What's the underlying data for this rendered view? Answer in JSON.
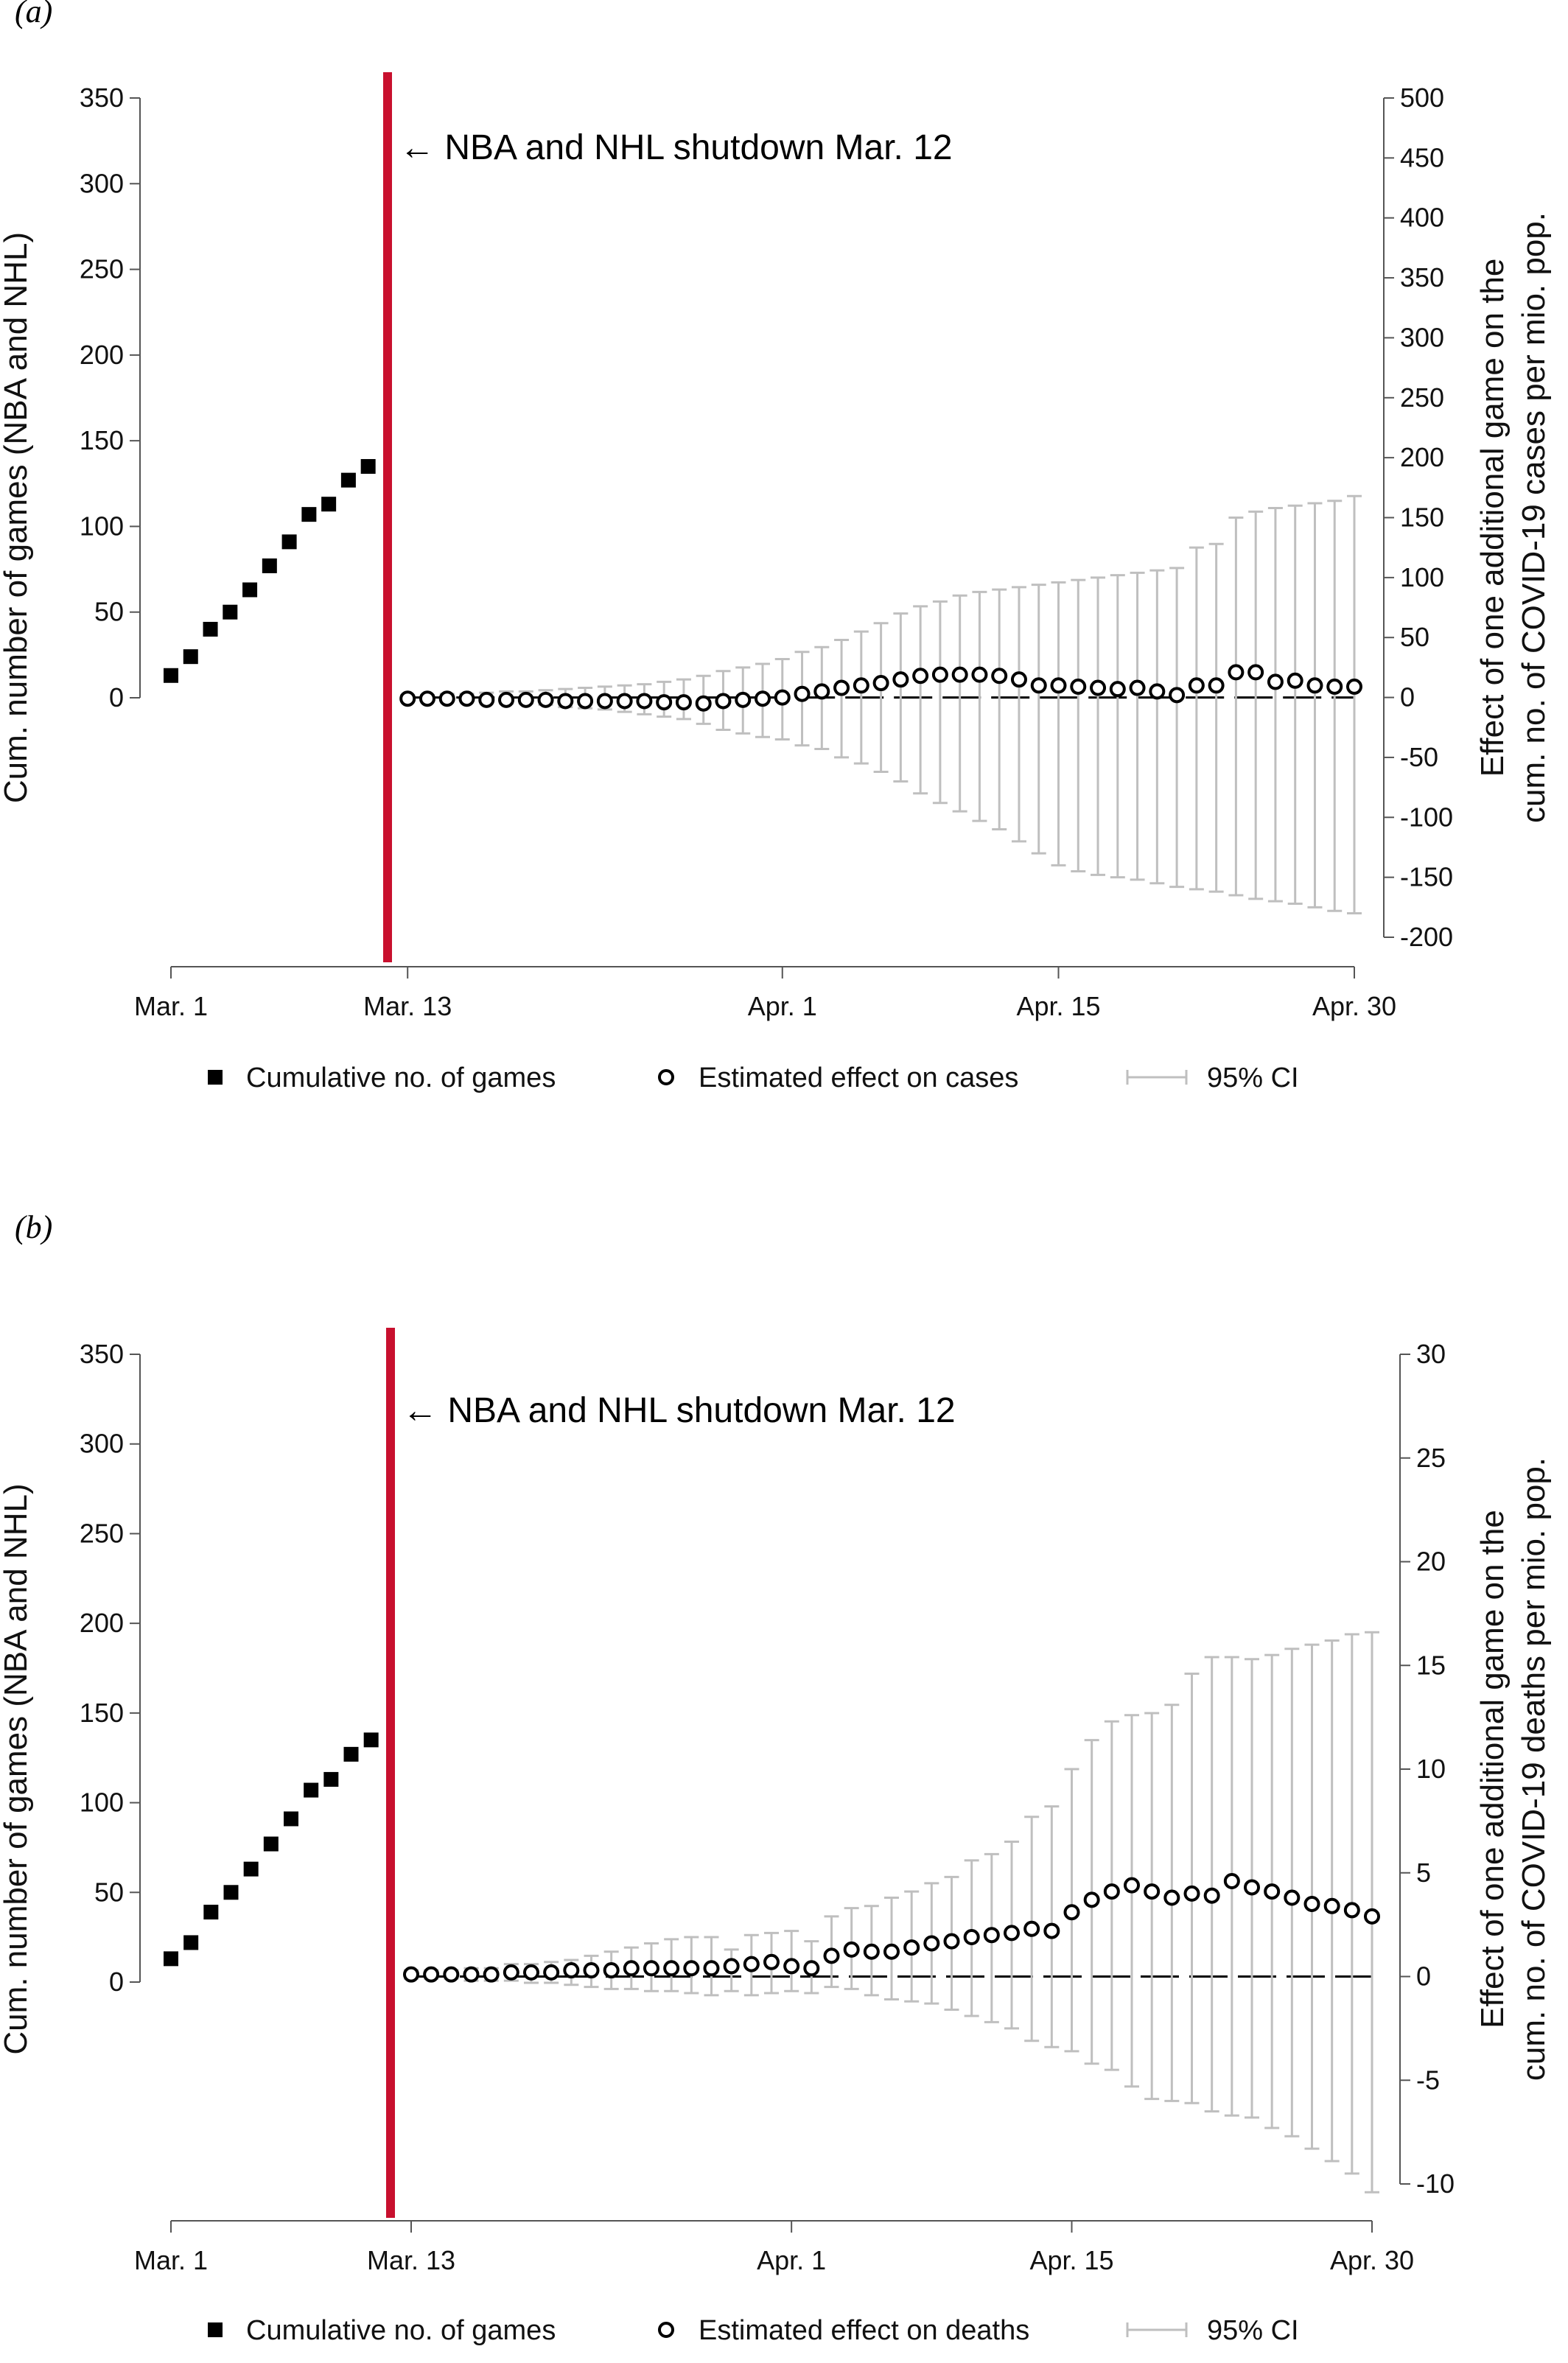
{
  "chart_data": [
    {
      "panel_label": "(a)",
      "type": "scatter",
      "annotation": "← NBA and NHL shutdown Mar. 12",
      "left_axis": {
        "title": "Cum. number of games (NBA and NHL)",
        "ylim": [
          0,
          350
        ],
        "ticks": [
          "0",
          "50",
          "100",
          "150",
          "200",
          "250",
          "300",
          "350"
        ]
      },
      "right_axis": {
        "title_line1": "Effect of one additional game on the",
        "title_line2": "cum. no. of COVID-19 cases per mio. pop.",
        "ylim": [
          -200,
          500
        ],
        "ticks": [
          "-200",
          "-150",
          "-100",
          "-50",
          "0",
          "50",
          "100",
          "150",
          "200",
          "250",
          "300",
          "350",
          "400",
          "450",
          "500"
        ]
      },
      "x_axis": {
        "ticks": [
          "Mar. 1",
          "Mar. 13",
          "Apr. 1",
          "Apr. 15",
          "Apr. 30"
        ],
        "tick_days": [
          0,
          12,
          31,
          45,
          60
        ]
      },
      "legend": {
        "games_label": "Cumulative no. of games",
        "effect_label": "Estimated effect on cases",
        "ci_label": "95% CI"
      },
      "series": {
        "games": {
          "name": "Cumulative no. of games",
          "day": [
            0,
            1,
            2,
            3,
            4,
            5,
            6,
            7,
            8,
            9,
            10
          ],
          "values": [
            13,
            24,
            40,
            50,
            63,
            77,
            91,
            107,
            113,
            127,
            135
          ]
        },
        "effect": {
          "name": "Estimated effect on cases",
          "day": [
            12,
            13,
            14,
            15,
            16,
            17,
            18,
            19,
            20,
            21,
            22,
            23,
            24,
            25,
            26,
            27,
            28,
            29,
            30,
            31,
            32,
            33,
            34,
            35,
            36,
            37,
            38,
            39,
            40,
            41,
            42,
            43,
            44,
            45,
            46,
            47,
            48,
            49,
            50,
            51,
            52,
            53,
            54,
            55,
            56,
            57,
            58,
            59,
            60
          ],
          "values": [
            -1,
            -1,
            -1,
            -1,
            -2,
            -2,
            -2,
            -2,
            -3,
            -3,
            -3,
            -3,
            -3,
            -4,
            -4,
            -5,
            -3,
            -2,
            -1,
            0,
            3,
            5,
            8,
            10,
            12,
            15,
            18,
            19,
            19,
            19,
            18,
            15,
            10,
            10,
            9,
            8,
            7,
            8,
            5,
            2,
            10,
            10,
            21,
            21,
            13,
            14,
            10,
            9,
            9
          ],
          "ci_low": [
            -2,
            -2,
            -3,
            -3,
            -4,
            -5,
            -5,
            -6,
            -8,
            -9,
            -10,
            -12,
            -14,
            -16,
            -18,
            -22,
            -27,
            -30,
            -33,
            -35,
            -40,
            -43,
            -50,
            -55,
            -62,
            -70,
            -80,
            -88,
            -95,
            -103,
            -110,
            -120,
            -130,
            -140,
            -145,
            -148,
            -150,
            -152,
            -155,
            -158,
            -160,
            -162,
            -165,
            -168,
            -170,
            -172,
            -175,
            -178,
            -180
          ],
          "ci_high": [
            2,
            2,
            3,
            3,
            4,
            5,
            5,
            6,
            7,
            8,
            9,
            10,
            11,
            13,
            15,
            18,
            22,
            25,
            28,
            32,
            38,
            42,
            48,
            55,
            62,
            70,
            76,
            80,
            85,
            88,
            90,
            92,
            94,
            96,
            98,
            100,
            102,
            104,
            106,
            108,
            125,
            128,
            150,
            155,
            158,
            160,
            162,
            164,
            168
          ]
        }
      }
    },
    {
      "panel_label": "(b)",
      "type": "scatter",
      "annotation": "← NBA and NHL shutdown Mar. 12",
      "left_axis": {
        "title": "Cum. number of games (NBA and NHL)",
        "ylim": [
          0,
          350
        ],
        "ticks": [
          "0",
          "50",
          "100",
          "150",
          "200",
          "250",
          "300",
          "350"
        ]
      },
      "right_axis": {
        "title_line1": "Effect of one additional game on the",
        "title_line2": "cum. no. of COVID-19 deaths  per mio. pop.",
        "ylim": [
          -10,
          30
        ],
        "ticks": [
          "-10",
          "-5",
          "0",
          "5",
          "10",
          "15",
          "20",
          "25",
          "30"
        ]
      },
      "x_axis": {
        "ticks": [
          "Mar. 1",
          "Mar. 13",
          "Apr. 1",
          "Apr. 15",
          "Apr. 30"
        ],
        "tick_days": [
          0,
          12,
          31,
          45,
          60
        ]
      },
      "legend": {
        "games_label": "Cumulative no. of games",
        "effect_label": "Estimated effect on deaths",
        "ci_label": "95% CI"
      },
      "series": {
        "games": {
          "name": "Cumulative no. of games",
          "day": [
            0,
            1,
            2,
            3,
            4,
            5,
            6,
            7,
            8,
            9,
            10
          ],
          "values": [
            13,
            22,
            39,
            50,
            63,
            77,
            91,
            107,
            113,
            127,
            135
          ]
        },
        "effect": {
          "name": "Estimated effect on deaths",
          "day": [
            12,
            13,
            14,
            15,
            16,
            17,
            18,
            19,
            20,
            21,
            22,
            23,
            24,
            25,
            26,
            27,
            28,
            29,
            30,
            31,
            32,
            33,
            34,
            35,
            36,
            37,
            38,
            39,
            40,
            41,
            42,
            43,
            44,
            45,
            46,
            47,
            48,
            49,
            50,
            51,
            52,
            53,
            54,
            55,
            56,
            57,
            58,
            59,
            60
          ],
          "values": [
            0.1,
            0.1,
            0.1,
            0.1,
            0.1,
            0.2,
            0.2,
            0.2,
            0.3,
            0.3,
            0.3,
            0.4,
            0.4,
            0.4,
            0.4,
            0.4,
            0.5,
            0.6,
            0.7,
            0.5,
            0.4,
            1.0,
            1.3,
            1.2,
            1.2,
            1.4,
            1.6,
            1.7,
            1.9,
            2.0,
            2.1,
            2.3,
            2.2,
            3.1,
            3.7,
            4.1,
            4.4,
            4.1,
            3.8,
            4.0,
            3.9,
            4.6,
            4.3,
            4.1,
            3.8,
            3.5,
            3.4,
            3.2,
            2.9
          ],
          "ci_low": [
            -0.1,
            -0.1,
            -0.1,
            -0.2,
            -0.2,
            -0.2,
            -0.3,
            -0.3,
            -0.4,
            -0.5,
            -0.6,
            -0.6,
            -0.7,
            -0.7,
            -0.8,
            -0.9,
            -0.7,
            -0.9,
            -0.8,
            -0.7,
            -0.8,
            -0.5,
            -0.6,
            -0.9,
            -1.1,
            -1.2,
            -1.3,
            -1.6,
            -1.9,
            -2.2,
            -2.5,
            -3.1,
            -3.4,
            -3.6,
            -4.2,
            -4.5,
            -5.3,
            -5.9,
            -6.0,
            -6.1,
            -6.5,
            -6.7,
            -6.8,
            -7.3,
            -7.7,
            -8.3,
            -8.9,
            -9.5,
            -10.4
          ],
          "ci_high": [
            0.3,
            0.3,
            0.3,
            0.4,
            0.4,
            0.6,
            0.6,
            0.7,
            0.8,
            1.0,
            1.2,
            1.4,
            1.6,
            1.8,
            1.9,
            1.9,
            1.3,
            2.0,
            2.1,
            2.2,
            1.7,
            2.9,
            3.3,
            3.4,
            3.8,
            4.1,
            4.5,
            4.8,
            5.6,
            5.9,
            6.5,
            7.7,
            8.2,
            10.0,
            11.4,
            12.3,
            12.6,
            12.7,
            13.1,
            14.6,
            15.4,
            15.4,
            15.3,
            15.5,
            15.8,
            16.0,
            16.2,
            16.5,
            16.6
          ]
        }
      }
    }
  ]
}
